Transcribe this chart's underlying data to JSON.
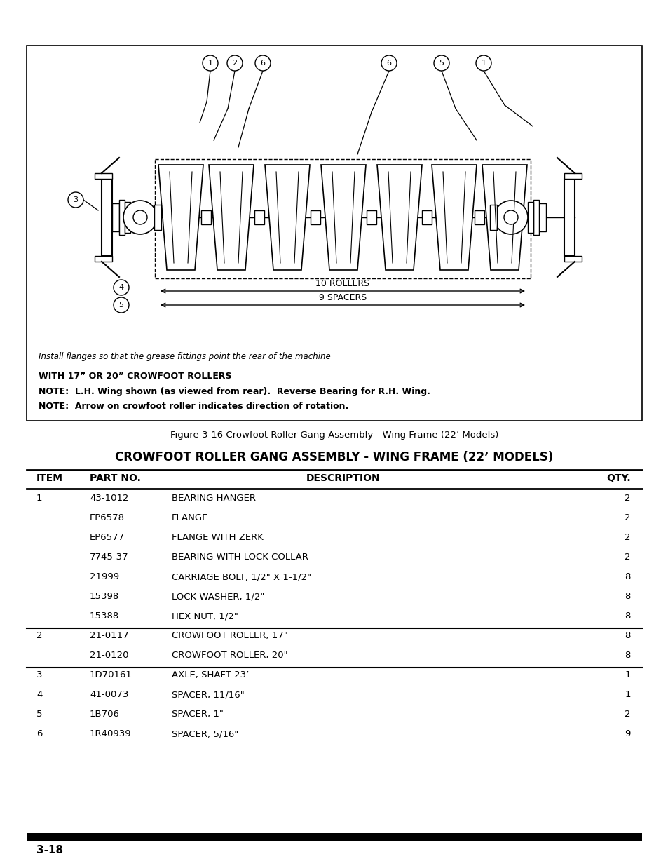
{
  "page_bg": "#ffffff",
  "figure_caption": "Figure 3-16 Crowfoot Roller Gang Assembly - Wing Frame (22’ Models)",
  "diagram_note1": "Install flanges so that the grease fittings point the rear of the machine",
  "diagram_note2": "WITH 17” OR 20” CROWFOOT ROLLERS",
  "diagram_note3": "NOTE:  L.H. Wing shown (as viewed from rear).  Reverse Bearing for R.H. Wing.",
  "diagram_note4": "NOTE:  Arrow on crowfoot roller indicates direction of rotation.",
  "table_title": "CROWFOOT ROLLER GANG ASSEMBLY - WING FRAME (22’ MODELS)",
  "table_headers": [
    "ITEM",
    "PART NO.",
    "DESCRIPTION",
    "QTY."
  ],
  "table_rows": [
    [
      "1",
      "43-1012",
      "BEARING HANGER",
      "2"
    ],
    [
      "",
      "EP6578",
      "FLANGE",
      "2"
    ],
    [
      "",
      "EP6577",
      "FLANGE WITH ZERK",
      "2"
    ],
    [
      "",
      "7745-37",
      "BEARING WITH LOCK COLLAR",
      "2"
    ],
    [
      "",
      "21999",
      "CARRIAGE BOLT, 1/2\" X 1-1/2\"",
      "8"
    ],
    [
      "",
      "15398",
      "LOCK WASHER, 1/2\"",
      "8"
    ],
    [
      "",
      "15388",
      "HEX NUT, 1/2\"",
      "8"
    ],
    [
      "2",
      "21-0117",
      "CROWFOOT ROLLER, 17\"",
      "8"
    ],
    [
      "",
      "21-0120",
      "CROWFOOT ROLLER, 20\"",
      "8"
    ],
    [
      "3",
      "1D70161",
      "AXLE, SHAFT 23’",
      "1"
    ],
    [
      "4",
      "41-0073",
      "SPACER, 11/16\"",
      "1"
    ],
    [
      "5",
      "1B706",
      "SPACER, 1\"",
      "2"
    ],
    [
      "6",
      "1R40939",
      "SPACER, 5/16\"",
      "9"
    ]
  ],
  "divider_rows": [
    6,
    8
  ],
  "page_number": "3-18"
}
